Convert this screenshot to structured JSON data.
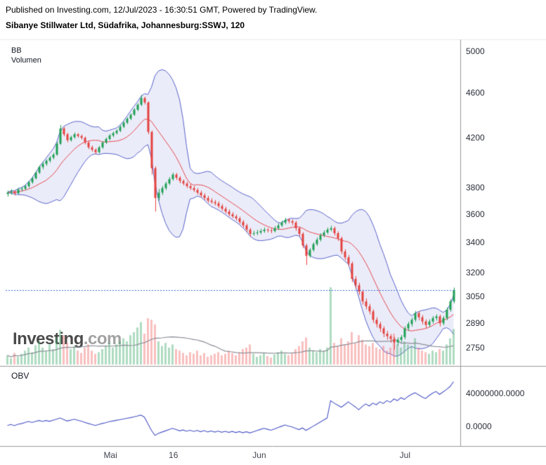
{
  "header": {
    "published_line": "Published on Investing.com, 12/Jul/2023 - 16:30:51 GMT, Powered by TradingView.",
    "instrument_line": "Sibanye Stillwater Ltd, Südafrika, Johannesburg:SSWJ, 120"
  },
  "main_panel": {
    "indicator_labels": [
      "BB",
      "Volumen"
    ],
    "watermark": {
      "brand": "Investing",
      "suffix": ".com"
    }
  },
  "obv_panel": {
    "label": "OBV"
  },
  "colors": {
    "up": "#1e9e53",
    "down": "#e3423f",
    "volume_up": "rgba(76,175,115,0.45)",
    "volume_down": "rgba(239,112,112,0.45)",
    "volume_ma": "#8a8d96",
    "bb_line": "#5560c9",
    "bb_fill": "rgba(98,110,212,0.13)",
    "bb_basis": "#e5484d",
    "obv_line": "#4a55c4",
    "last_price_line": "#3b6fd6",
    "axis_text": "#2a2e39",
    "border": "#9a9a9a",
    "header_rule": "#e8e8e8"
  },
  "chart_data": {
    "type": "candlestick",
    "title": "Sibanye Stillwater Ltd, Südafrika, Johannesburg:SSWJ, 120",
    "panels": [
      "price with Bollinger Bands and volume",
      "OBV"
    ],
    "price_scale": "log",
    "price_axis_range": [
      2655,
      5115
    ],
    "price_ticks": [
      5000,
      4600,
      4200,
      3800,
      3600,
      3400,
      3200,
      3050,
      2890,
      2750
    ],
    "time_ticks": [
      {
        "label": "Mai",
        "pos": 0.233
      },
      {
        "label": "16",
        "pos": 0.373
      },
      {
        "label": "Jun",
        "pos": 0.564
      },
      {
        "label": "Jul",
        "pos": 0.888
      }
    ],
    "obv_ticks": [
      {
        "label": "40000000.0000",
        "millions": 40
      },
      {
        "label": "0.0000",
        "millions": 0
      }
    ],
    "obv_range_millions": [
      -23,
      72
    ],
    "last_price_level": 3090,
    "bollinger": {
      "period": 12,
      "mult": 2
    },
    "volume_units": "relative",
    "candles": [
      [
        3750,
        3775,
        3730,
        3760
      ],
      [
        3760,
        3785,
        3745,
        3770
      ],
      [
        3770,
        3778,
        3738,
        3755
      ],
      [
        3755,
        3795,
        3748,
        3785
      ],
      [
        3785,
        3805,
        3770,
        3790
      ],
      [
        3790,
        3822,
        3780,
        3810
      ],
      [
        3810,
        3852,
        3798,
        3840
      ],
      [
        3840,
        3882,
        3828,
        3870
      ],
      [
        3870,
        3928,
        3862,
        3915
      ],
      [
        3915,
        3972,
        3905,
        3960
      ],
      [
        3960,
        3998,
        3942,
        3985
      ],
      [
        3985,
        4022,
        3970,
        4010
      ],
      [
        4010,
        4048,
        3995,
        4035
      ],
      [
        4035,
        4075,
        4022,
        4060
      ],
      [
        4060,
        4165,
        4050,
        4150
      ],
      [
        4150,
        4310,
        4140,
        4280
      ],
      [
        4280,
        4292,
        4212,
        4230
      ],
      [
        4230,
        4242,
        4162,
        4180
      ],
      [
        4180,
        4218,
        4168,
        4205
      ],
      [
        4205,
        4245,
        4192,
        4230
      ],
      [
        4230,
        4240,
        4200,
        4215
      ],
      [
        4215,
        4228,
        4185,
        4200
      ],
      [
        4200,
        4210,
        4145,
        4160
      ],
      [
        4160,
        4172,
        4105,
        4120
      ],
      [
        4120,
        4135,
        4085,
        4100
      ],
      [
        4100,
        4112,
        4062,
        4080
      ],
      [
        4080,
        4132,
        4070,
        4120
      ],
      [
        4120,
        4172,
        4108,
        4160
      ],
      [
        4160,
        4202,
        4148,
        4190
      ],
      [
        4190,
        4232,
        4178,
        4220
      ],
      [
        4220,
        4252,
        4205,
        4240
      ],
      [
        4240,
        4272,
        4228,
        4260
      ],
      [
        4260,
        4308,
        4248,
        4295
      ],
      [
        4295,
        4342,
        4282,
        4330
      ],
      [
        4330,
        4378,
        4318,
        4365
      ],
      [
        4365,
        4412,
        4352,
        4400
      ],
      [
        4400,
        4458,
        4390,
        4445
      ],
      [
        4445,
        4502,
        4432,
        4490
      ],
      [
        4490,
        4580,
        4478,
        4550
      ],
      [
        4550,
        4562,
        4492,
        4510
      ],
      [
        4510,
        4520,
        4230,
        4250
      ],
      [
        4250,
        4262,
        3900,
        3950
      ],
      [
        3950,
        3965,
        3620,
        3720
      ],
      [
        3720,
        3788,
        3700,
        3760
      ],
      [
        3760,
        3812,
        3742,
        3795
      ],
      [
        3795,
        3845,
        3780,
        3830
      ],
      [
        3830,
        3880,
        3818,
        3865
      ],
      [
        3865,
        3915,
        3852,
        3900
      ],
      [
        3900,
        3912,
        3858,
        3875
      ],
      [
        3875,
        3888,
        3832,
        3850
      ],
      [
        3850,
        3862,
        3815,
        3830
      ],
      [
        3830,
        3845,
        3795,
        3810
      ],
      [
        3810,
        3825,
        3780,
        3795
      ],
      [
        3795,
        3810,
        3765,
        3780
      ],
      [
        3780,
        3795,
        3745,
        3760
      ],
      [
        3760,
        3775,
        3725,
        3740
      ],
      [
        3740,
        3755,
        3705,
        3720
      ],
      [
        3720,
        3735,
        3685,
        3700
      ],
      [
        3700,
        3718,
        3678,
        3690
      ],
      [
        3690,
        3705,
        3665,
        3680
      ],
      [
        3680,
        3695,
        3645,
        3660
      ],
      [
        3660,
        3675,
        3625,
        3640
      ],
      [
        3640,
        3655,
        3605,
        3620
      ],
      [
        3620,
        3635,
        3585,
        3600
      ],
      [
        3600,
        3615,
        3572,
        3585
      ],
      [
        3585,
        3598,
        3555,
        3570
      ],
      [
        3570,
        3582,
        3530,
        3545
      ],
      [
        3545,
        3558,
        3505,
        3520
      ],
      [
        3520,
        3532,
        3475,
        3490
      ],
      [
        3490,
        3502,
        3440,
        3460
      ],
      [
        3460,
        3482,
        3448,
        3465
      ],
      [
        3465,
        3488,
        3452,
        3470
      ],
      [
        3470,
        3495,
        3458,
        3480
      ],
      [
        3480,
        3505,
        3468,
        3490
      ],
      [
        3490,
        3500,
        3470,
        3485
      ],
      [
        3485,
        3498,
        3465,
        3480
      ],
      [
        3480,
        3515,
        3470,
        3500
      ],
      [
        3500,
        3535,
        3488,
        3520
      ],
      [
        3520,
        3555,
        3508,
        3540
      ],
      [
        3540,
        3575,
        3528,
        3560
      ],
      [
        3560,
        3572,
        3535,
        3550
      ],
      [
        3550,
        3562,
        3522,
        3540
      ],
      [
        3540,
        3552,
        3482,
        3500
      ],
      [
        3500,
        3512,
        3442,
        3460
      ],
      [
        3460,
        3472,
        3362,
        3380
      ],
      [
        3380,
        3392,
        3250,
        3310
      ],
      [
        3310,
        3362,
        3298,
        3350
      ],
      [
        3350,
        3402,
        3338,
        3390
      ],
      [
        3390,
        3435,
        3378,
        3420
      ],
      [
        3420,
        3465,
        3408,
        3450
      ],
      [
        3450,
        3485,
        3438,
        3470
      ],
      [
        3470,
        3505,
        3458,
        3490
      ],
      [
        3490,
        3518,
        3478,
        3500
      ],
      [
        3500,
        3512,
        3448,
        3465
      ],
      [
        3465,
        3478,
        3412,
        3430
      ],
      [
        3430,
        3442,
        3322,
        3340
      ],
      [
        3340,
        3355,
        3282,
        3300
      ],
      [
        3300,
        3315,
        3242,
        3260
      ],
      [
        3260,
        3272,
        3140,
        3160
      ],
      [
        3160,
        3178,
        3100,
        3120
      ],
      [
        3120,
        3135,
        3060,
        3080
      ],
      [
        3080,
        3092,
        3000,
        3020
      ],
      [
        3020,
        3038,
        2972,
        2990
      ],
      [
        2990,
        3005,
        2942,
        2960
      ],
      [
        2960,
        2972,
        2892,
        2910
      ],
      [
        2910,
        2925,
        2865,
        2885
      ],
      [
        2885,
        2898,
        2840,
        2860
      ],
      [
        2860,
        2872,
        2810,
        2830
      ],
      [
        2830,
        2845,
        2795,
        2815
      ],
      [
        2815,
        2828,
        2778,
        2800
      ],
      [
        2800,
        2812,
        2740,
        2780
      ],
      [
        2780,
        2808,
        2762,
        2795
      ],
      [
        2795,
        2822,
        2780,
        2810
      ],
      [
        2810,
        2872,
        2798,
        2860
      ],
      [
        2860,
        2898,
        2845,
        2885
      ],
      [
        2885,
        2922,
        2870,
        2910
      ],
      [
        2910,
        2962,
        2898,
        2950
      ],
      [
        2950,
        2960,
        2908,
        2925
      ],
      [
        2925,
        2938,
        2882,
        2900
      ],
      [
        2900,
        2912,
        2862,
        2880
      ],
      [
        2880,
        2912,
        2868,
        2900
      ],
      [
        2900,
        2932,
        2888,
        2920
      ],
      [
        2920,
        2942,
        2905,
        2930
      ],
      [
        2930,
        2940,
        2872,
        2890
      ],
      [
        2890,
        2932,
        2878,
        2920
      ],
      [
        2920,
        2982,
        2908,
        2970
      ],
      [
        2970,
        3032,
        2958,
        3020
      ],
      [
        3020,
        3105,
        3008,
        3090
      ]
    ],
    "volume_relative": [
      12,
      8,
      15,
      10,
      14,
      18,
      22,
      16,
      25,
      30,
      22,
      18,
      26,
      20,
      35,
      45,
      38,
      28,
      20,
      24,
      18,
      15,
      22,
      26,
      18,
      14,
      16,
      20,
      24,
      28,
      22,
      26,
      30,
      34,
      30,
      38,
      42,
      48,
      55,
      40,
      60,
      58,
      52,
      30,
      24,
      28,
      22,
      26,
      20,
      18,
      15,
      12,
      16,
      14,
      18,
      12,
      15,
      10,
      12,
      14,
      16,
      12,
      14,
      18,
      15,
      12,
      16,
      20,
      22,
      26,
      14,
      10,
      12,
      15,
      11,
      9,
      13,
      16,
      18,
      14,
      12,
      15,
      20,
      24,
      30,
      35,
      22,
      18,
      16,
      20,
      18,
      22,
      100,
      28,
      24,
      34,
      26,
      30,
      42,
      28,
      38,
      32,
      26,
      24,
      28,
      22,
      20,
      24,
      18,
      22,
      40,
      26,
      22,
      30,
      26,
      24,
      34,
      22,
      18,
      16,
      14,
      18,
      16,
      20,
      18,
      26,
      34,
      46
    ],
    "obv_millions": [
      1,
      2.2,
      0.8,
      2.4,
      3.2,
      4.6,
      5.8,
      4.6,
      5.8,
      7,
      5.8,
      7,
      6,
      7.4,
      8.6,
      10,
      8.2,
      6.4,
      7.4,
      8.6,
      7.4,
      6.2,
      4.8,
      3.4,
      2.2,
      1,
      2.2,
      3.4,
      4.4,
      5.6,
      6.4,
      7.2,
      8,
      8.8,
      9.6,
      10.4,
      11.4,
      12.4,
      13.6,
      11,
      3,
      -5,
      -11,
      -8.5,
      -7,
      -5.5,
      -4,
      -2.5,
      -4,
      -5.5,
      -4.5,
      -6,
      -4.8,
      -6.2,
      -5,
      -6.5,
      -5.2,
      -6.8,
      -5.6,
      -7,
      -5.8,
      -7.2,
      -6,
      -7.4,
      -6.2,
      -7.6,
      -6.4,
      -7.8,
      -6.6,
      -8,
      -6.6,
      -5.2,
      -3.8,
      -2.4,
      -3.6,
      -4.8,
      -3.2,
      -1.6,
      0,
      1.6,
      0.4,
      -0.8,
      -2.4,
      -4,
      -2,
      -5,
      -2.5,
      0,
      2.5,
      5,
      7.5,
      10,
      31,
      28,
      25.5,
      23,
      26,
      29.5,
      26.5,
      23.5,
      20,
      24,
      27,
      24.5,
      28,
      26,
      29.5,
      27.5,
      31,
      29,
      33,
      31,
      34.5,
      32.5,
      36,
      38.5,
      40.5,
      38,
      35.5,
      33.5,
      37,
      40,
      42,
      38.5,
      41.5,
      44.5,
      48,
      54
    ]
  }
}
